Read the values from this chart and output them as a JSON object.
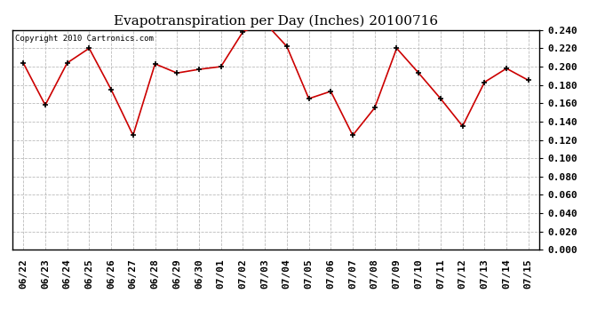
{
  "title": "Evapotranspiration per Day (Inches) 20100716",
  "copyright_text": "Copyright 2010 Cartronics.com",
  "dates": [
    "06/22",
    "06/23",
    "06/24",
    "06/25",
    "06/26",
    "06/27",
    "06/28",
    "06/29",
    "06/30",
    "07/01",
    "07/02",
    "07/03",
    "07/04",
    "07/05",
    "07/06",
    "07/07",
    "07/08",
    "07/09",
    "07/10",
    "07/11",
    "07/12",
    "07/13",
    "07/14",
    "07/15"
  ],
  "values": [
    0.204,
    0.158,
    0.204,
    0.22,
    0.175,
    0.125,
    0.203,
    0.193,
    0.197,
    0.2,
    0.238,
    0.248,
    0.222,
    0.165,
    0.173,
    0.125,
    0.155,
    0.22,
    0.193,
    0.165,
    0.135,
    0.183,
    0.198,
    0.185
  ],
  "line_color": "#cc0000",
  "marker": "+",
  "marker_color": "#000000",
  "bg_color": "#ffffff",
  "plot_bg_color": "#ffffff",
  "grid_color": "#bbbbbb",
  "ylim": [
    0.0,
    0.24
  ],
  "ytick_step": 0.02,
  "title_fontsize": 11,
  "copyright_fontsize": 6.5,
  "tick_label_fontsize": 8,
  "border_color": "#000000"
}
